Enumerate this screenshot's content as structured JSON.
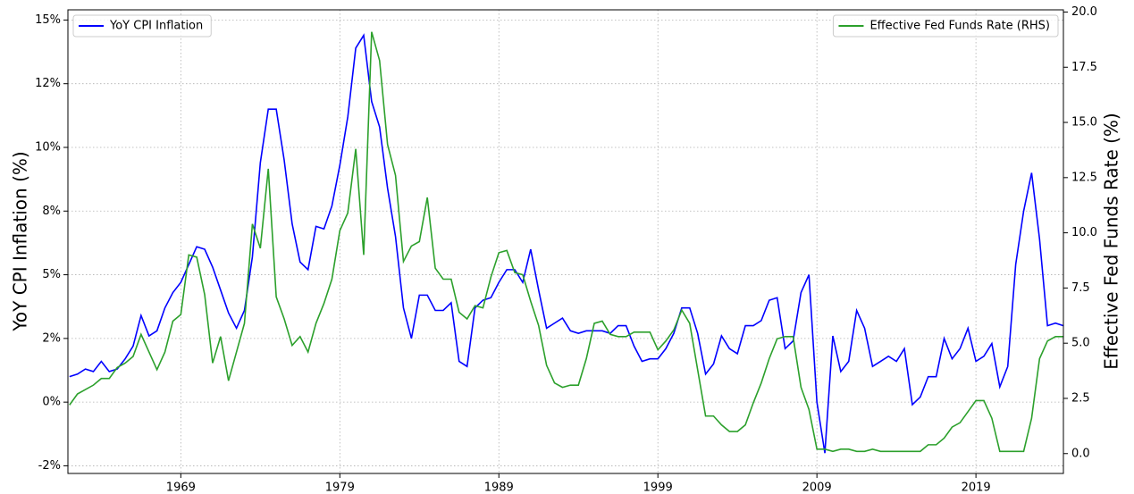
{
  "chart_data": {
    "type": "line",
    "ylabel": "YoY CPI Inflation (%)",
    "y2label": "Effective Fed Funds Rate (%)",
    "xlim": [
      1961.9,
      2024.5
    ],
    "xticks": [
      1969,
      1979,
      1989,
      1999,
      2009,
      2019
    ],
    "ylim": [
      -2.8,
      15.4
    ],
    "yticks": [
      {
        "value": -2.5,
        "label": "-2%"
      },
      {
        "value": 0,
        "label": "0%"
      },
      {
        "value": 2.5,
        "label": "2%"
      },
      {
        "value": 5,
        "label": "5%"
      },
      {
        "value": 7.5,
        "label": "8%"
      },
      {
        "value": 10,
        "label": "10%"
      },
      {
        "value": 12.5,
        "label": "12%"
      },
      {
        "value": 15,
        "label": "15%"
      }
    ],
    "y2lim": [
      -0.9,
      20.1
    ],
    "y2ticks": [
      {
        "value": 0,
        "label": "0.0"
      },
      2.5,
      {
        "value": 5,
        "label": "5.0"
      },
      7.5,
      {
        "value": 10,
        "label": "10.0"
      },
      12.5,
      {
        "value": 15,
        "label": "15.0"
      },
      17.5,
      {
        "value": 20,
        "label": "20.0"
      }
    ],
    "grid": true,
    "x": [
      1962.0,
      1962.5,
      1963.0,
      1963.5,
      1964.0,
      1964.5,
      1965.0,
      1965.5,
      1966.0,
      1966.5,
      1967.0,
      1967.5,
      1968.0,
      1968.5,
      1969.0,
      1969.5,
      1970.0,
      1970.5,
      1971.0,
      1971.5,
      1972.0,
      1972.5,
      1973.0,
      1973.5,
      1974.0,
      1974.5,
      1975.0,
      1975.5,
      1976.0,
      1976.5,
      1977.0,
      1977.5,
      1978.0,
      1978.5,
      1979.0,
      1979.5,
      1980.0,
      1980.5,
      1981.0,
      1981.5,
      1982.0,
      1982.5,
      1983.0,
      1983.5,
      1984.0,
      1984.5,
      1985.0,
      1985.5,
      1986.0,
      1986.5,
      1987.0,
      1987.5,
      1988.0,
      1988.5,
      1989.0,
      1989.5,
      1990.0,
      1990.5,
      1991.0,
      1991.5,
      1992.0,
      1992.5,
      1993.0,
      1993.5,
      1994.0,
      1994.5,
      1995.0,
      1995.5,
      1996.0,
      1996.5,
      1997.0,
      1997.5,
      1998.0,
      1998.5,
      1999.0,
      1999.5,
      2000.0,
      2000.5,
      2001.0,
      2001.5,
      2002.0,
      2002.5,
      2003.0,
      2003.5,
      2004.0,
      2004.5,
      2005.0,
      2005.5,
      2006.0,
      2006.5,
      2007.0,
      2007.5,
      2008.0,
      2008.5,
      2009.0,
      2009.5,
      2010.0,
      2010.5,
      2011.0,
      2011.5,
      2012.0,
      2012.5,
      2013.0,
      2013.5,
      2014.0,
      2014.5,
      2015.0,
      2015.5,
      2016.0,
      2016.5,
      2017.0,
      2017.5,
      2018.0,
      2018.5,
      2019.0,
      2019.5,
      2020.0,
      2020.5,
      2021.0,
      2021.5,
      2022.0,
      2022.5,
      2023.0,
      2023.5,
      2024.0,
      2024.5
    ],
    "series": [
      {
        "name": "YoY CPI Inflation",
        "color": "#0000ff",
        "legend": "upper left",
        "values": [
          1.0,
          1.1,
          1.3,
          1.2,
          1.6,
          1.2,
          1.3,
          1.7,
          2.2,
          3.4,
          2.6,
          2.8,
          3.7,
          4.3,
          4.7,
          5.4,
          6.1,
          6.0,
          5.3,
          4.4,
          3.5,
          2.9,
          3.6,
          5.7,
          9.4,
          11.5,
          11.5,
          9.5,
          7.0,
          5.5,
          5.2,
          6.9,
          6.8,
          7.7,
          9.3,
          11.2,
          13.9,
          14.4,
          11.8,
          10.8,
          8.4,
          6.5,
          3.7,
          2.5,
          4.2,
          4.2,
          3.6,
          3.6,
          3.9,
          1.6,
          1.4,
          3.7,
          4.0,
          4.1,
          4.7,
          5.2,
          5.2,
          4.7,
          6.0,
          4.4,
          2.9,
          3.1,
          3.3,
          2.8,
          2.7,
          2.8,
          2.8,
          2.8,
          2.7,
          3.0,
          3.0,
          2.2,
          1.6,
          1.7,
          1.7,
          2.1,
          2.7,
          3.7,
          3.7,
          2.7,
          1.1,
          1.5,
          2.6,
          2.1,
          1.9,
          3.0,
          3.0,
          3.2,
          4.0,
          4.1,
          2.1,
          2.4,
          4.3,
          5.0,
          0.0,
          -2.0,
          2.6,
          1.2,
          1.6,
          3.6,
          2.9,
          1.4,
          1.6,
          1.8,
          1.6,
          2.1,
          -0.1,
          0.2,
          1.0,
          1.0,
          2.5,
          1.7,
          2.1,
          2.9,
          1.6,
          1.8,
          2.3,
          0.6,
          1.4,
          5.4,
          7.5,
          9.0,
          6.4,
          3.0,
          3.1,
          3.0
        ]
      },
      {
        "name": "Effective Fed Funds Rate (RHS)",
        "color": "#2ca02c",
        "axis": "y2",
        "legend": "upper right",
        "values": [
          2.2,
          2.7,
          2.9,
          3.1,
          3.4,
          3.4,
          3.9,
          4.1,
          4.4,
          5.4,
          4.6,
          3.8,
          4.6,
          6.0,
          6.3,
          9.0,
          8.9,
          7.2,
          4.1,
          5.3,
          3.3,
          4.6,
          5.9,
          10.4,
          9.3,
          12.9,
          7.1,
          6.1,
          4.9,
          5.3,
          4.6,
          5.9,
          6.8,
          7.9,
          10.1,
          10.9,
          13.8,
          9.0,
          19.1,
          17.8,
          14.0,
          12.6,
          8.7,
          9.4,
          9.6,
          11.6,
          8.4,
          7.9,
          7.9,
          6.4,
          6.1,
          6.7,
          6.6,
          8.0,
          9.1,
          9.2,
          8.2,
          8.1,
          6.9,
          5.8,
          4.0,
          3.2,
          3.0,
          3.1,
          3.1,
          4.3,
          5.9,
          6.0,
          5.4,
          5.3,
          5.3,
          5.5,
          5.5,
          5.5,
          4.7,
          5.1,
          5.6,
          6.5,
          5.9,
          3.8,
          1.7,
          1.7,
          1.3,
          1.0,
          1.0,
          1.3,
          2.3,
          3.2,
          4.3,
          5.2,
          5.3,
          5.3,
          3.0,
          2.0,
          0.2,
          0.2,
          0.1,
          0.2,
          0.2,
          0.1,
          0.1,
          0.2,
          0.1,
          0.1,
          0.1,
          0.1,
          0.1,
          0.1,
          0.4,
          0.4,
          0.7,
          1.2,
          1.4,
          1.9,
          2.4,
          2.4,
          1.6,
          0.1,
          0.1,
          0.1,
          0.1,
          1.6,
          4.3,
          5.1,
          5.3,
          5.3
        ]
      }
    ]
  }
}
